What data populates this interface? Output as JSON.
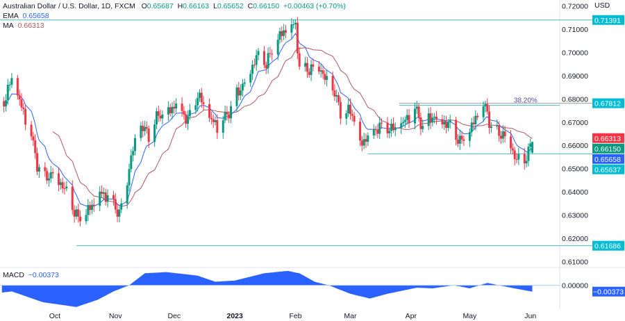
{
  "header": {
    "symbol": "Australian Dollar / U.S. Dollar, 1D, FXCM",
    "open_label": "O",
    "open": "0.65687",
    "high_label": "H",
    "high": "0.66163",
    "low_label": "L",
    "low": "0.65652",
    "close_label": "C",
    "close": "0.66150",
    "change": "+0.00463 (+0.70%)"
  },
  "indicators": {
    "ema_label": "EMA",
    "ema_value": "0.65658",
    "ma_label": "MA",
    "ma_value": "0.66313",
    "macd_label": "MACD",
    "macd_value": "−0.00373"
  },
  "colors": {
    "up": "#089981",
    "down": "#f23645",
    "ema": "#2962ff",
    "ma": "#b2555f",
    "level": "#4fb8c2",
    "label_bg": "#00bcd4",
    "macd": "#2962ff"
  },
  "chart_data": {
    "type": "candlestick",
    "currency_label": "USD",
    "y_ticks": [
      "0.72000",
      "0.71000",
      "0.70000",
      "0.69000",
      "0.68000",
      "0.67000",
      "0.66000",
      "0.65000",
      "0.64000",
      "0.63000",
      "0.62000",
      "0.61000"
    ],
    "ylim": [
      0.6075,
      0.7225
    ],
    "x_ticks": [
      {
        "label": "Oct",
        "date": "2022-10-01"
      },
      {
        "label": "Nov",
        "date": "2022-11-01"
      },
      {
        "label": "Dec",
        "date": "2022-12-01"
      },
      {
        "label": "2023",
        "date": "2023-01-01"
      },
      {
        "label": "Feb",
        "date": "2023-02-01"
      },
      {
        "label": "Mar",
        "date": "2023-03-01"
      },
      {
        "label": "Apr",
        "date": "2023-04-01"
      },
      {
        "label": "May",
        "date": "2023-05-01"
      },
      {
        "label": "Jun",
        "date": "2023-06-01"
      }
    ],
    "xlim": [
      "2022-09-03",
      "2023-06-16"
    ],
    "close_path": [
      [
        "2022-09-05",
        0.679
      ],
      [
        "2022-09-09",
        0.688
      ],
      [
        "2022-09-14",
        0.676
      ],
      [
        "2022-09-19",
        0.664
      ],
      [
        "2022-09-22",
        0.652
      ],
      [
        "2022-09-26",
        0.646
      ],
      [
        "2022-09-30",
        0.649
      ],
      [
        "2022-10-05",
        0.643
      ],
      [
        "2022-10-10",
        0.633
      ],
      [
        "2022-10-13",
        0.628
      ],
      [
        "2022-10-17",
        0.63
      ],
      [
        "2022-10-20",
        0.634
      ],
      [
        "2022-10-24",
        0.639
      ],
      [
        "2022-10-28",
        0.639
      ],
      [
        "2022-11-03",
        0.631
      ],
      [
        "2022-11-07",
        0.646
      ],
      [
        "2022-11-09",
        0.655
      ],
      [
        "2022-11-14",
        0.668
      ],
      [
        "2022-11-18",
        0.664
      ],
      [
        "2022-11-23",
        0.673
      ],
      [
        "2022-11-28",
        0.674
      ],
      [
        "2022-12-02",
        0.679
      ],
      [
        "2022-12-08",
        0.671
      ],
      [
        "2022-12-13",
        0.682
      ],
      [
        "2022-12-19",
        0.671
      ],
      [
        "2022-12-23",
        0.668
      ],
      [
        "2022-12-28",
        0.673
      ],
      [
        "2023-01-02",
        0.682
      ],
      [
        "2023-01-06",
        0.688
      ],
      [
        "2023-01-12",
        0.698
      ],
      [
        "2023-01-17",
        0.695
      ],
      [
        "2023-01-23",
        0.705
      ],
      [
        "2023-01-27",
        0.71
      ],
      [
        "2023-02-01",
        0.712
      ],
      [
        "2023-02-03",
        0.694
      ],
      [
        "2023-02-08",
        0.693
      ],
      [
        "2023-02-13",
        0.695
      ],
      [
        "2023-02-16",
        0.688
      ],
      [
        "2023-02-21",
        0.682
      ],
      [
        "2023-02-24",
        0.674
      ],
      [
        "2023-03-02",
        0.674
      ],
      [
        "2023-03-06",
        0.66
      ],
      [
        "2023-03-10",
        0.665
      ],
      [
        "2023-03-15",
        0.668
      ],
      [
        "2023-03-20",
        0.668
      ],
      [
        "2023-03-24",
        0.666
      ],
      [
        "2023-03-30",
        0.671
      ],
      [
        "2023-04-03",
        0.676
      ],
      [
        "2023-04-07",
        0.668
      ],
      [
        "2023-04-12",
        0.673
      ],
      [
        "2023-04-17",
        0.671
      ],
      [
        "2023-04-21",
        0.668
      ],
      [
        "2023-04-26",
        0.661
      ],
      [
        "2023-05-01",
        0.665
      ],
      [
        "2023-05-05",
        0.674
      ],
      [
        "2023-05-09",
        0.677
      ],
      [
        "2023-05-12",
        0.668
      ],
      [
        "2023-05-16",
        0.666
      ],
      [
        "2023-05-22",
        0.662
      ],
      [
        "2023-05-24",
        0.654
      ],
      [
        "2023-05-29",
        0.652
      ],
      [
        "2023-05-31",
        0.6569
      ],
      [
        "2023-06-02",
        0.6615
      ]
    ],
    "levels": [
      {
        "value": 0.71391,
        "label": "0.71391",
        "from": "2022-09-03"
      },
      {
        "value": 0.67812,
        "label": "0.67812",
        "from": "2023-03-26",
        "fib_label": "38.20%"
      },
      {
        "value": 0.65637,
        "label": "0.65637",
        "from": "2023-03-10"
      },
      {
        "value": 0.61686,
        "label": "0.61686",
        "from": "2022-10-12"
      }
    ],
    "price_labels": [
      {
        "label": "0.66313",
        "value": 0.66313,
        "color": "#f23645"
      },
      {
        "label": "0.66150",
        "value": 0.6615,
        "color": "#089981"
      },
      {
        "label": "0.65658",
        "value": 0.65658,
        "color": "#2962ff"
      }
    ],
    "macd": {
      "zero_label": "0.00000",
      "last_label": "−0.00373",
      "last": -0.00373,
      "ylim": [
        -0.0145,
        0.0105
      ],
      "path": [
        [
          "2022-09-04",
          -0.0043
        ],
        [
          "2022-09-09",
          -0.0036
        ],
        [
          "2022-09-25",
          -0.01
        ],
        [
          "2022-10-12",
          -0.0128
        ],
        [
          "2022-10-23",
          -0.0085
        ],
        [
          "2022-10-31",
          -0.0036
        ],
        [
          "2022-11-08",
          0.0
        ],
        [
          "2022-11-16",
          0.0071
        ],
        [
          "2022-11-27",
          0.0078
        ],
        [
          "2022-12-13",
          0.0057
        ],
        [
          "2022-12-22",
          0.0021
        ],
        [
          "2023-01-01",
          0.0028
        ],
        [
          "2023-01-16",
          0.0071
        ],
        [
          "2023-01-28",
          0.0085
        ],
        [
          "2023-02-03",
          0.0071
        ],
        [
          "2023-02-11",
          0.002
        ],
        [
          "2023-02-18",
          0.0
        ],
        [
          "2023-03-01",
          -0.005
        ],
        [
          "2023-03-11",
          -0.0078
        ],
        [
          "2023-03-20",
          -0.005
        ],
        [
          "2023-04-04",
          -0.0014
        ],
        [
          "2023-04-12",
          -0.0018
        ],
        [
          "2023-04-23",
          0.0
        ],
        [
          "2023-05-01",
          -0.0018
        ],
        [
          "2023-05-10",
          0.0014
        ],
        [
          "2023-05-22",
          -0.0014
        ],
        [
          "2023-06-02",
          -0.00373
        ]
      ]
    }
  }
}
